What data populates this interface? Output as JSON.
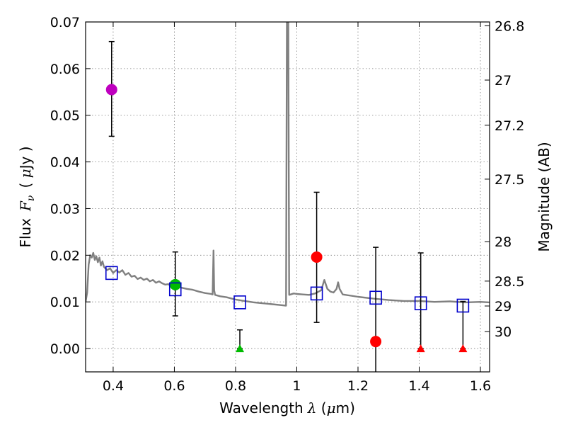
{
  "chart_data": {
    "type": "scatter",
    "xlabel": {
      "prefix": "Wavelength",
      "symbol": "λ",
      "unit_open": " (",
      "unit_mu": "μ",
      "unit_rest": "m)"
    },
    "ylabel": {
      "prefix": "Flux",
      "symbol": "F",
      "subscript": "ν",
      "unit_open": "( ",
      "unit_mu": "μ",
      "unit_rest": "Jy )"
    },
    "y2label": "Magnitude (AB)",
    "xlim": [
      0.31,
      1.63
    ],
    "ylim": [
      -0.005,
      0.07
    ],
    "grid": true,
    "x_ticks": [
      0.4,
      0.6,
      0.8,
      1.0,
      1.2,
      1.4,
      1.6
    ],
    "x_tick_labels": [
      "0.4",
      "0.6",
      "0.8",
      "1",
      "1.2",
      "1.4",
      "1.6"
    ],
    "y_ticks": [
      0.0,
      0.01,
      0.02,
      0.03,
      0.04,
      0.05,
      0.06,
      0.07
    ],
    "y_tick_labels": [
      "0.00",
      "0.01",
      "0.02",
      "0.03",
      "0.04",
      "0.05",
      "0.06",
      "0.07"
    ],
    "mag_ticks": [
      {
        "label": "26.8",
        "mag": 26.8
      },
      {
        "label": "27",
        "mag": 27.0
      },
      {
        "label": "27.2",
        "mag": 27.2
      },
      {
        "label": "27.5",
        "mag": 27.5
      },
      {
        "label": "28",
        "mag": 28.0
      },
      {
        "label": "28.5",
        "mag": 28.5
      },
      {
        "label": "29",
        "mag": 29.0
      },
      {
        "label": "30",
        "mag": 30.0
      }
    ],
    "colors": {
      "sed": "#808080",
      "model": "#0000cc",
      "purple": "#bf00bf",
      "green": "#00bb00",
      "red": "#ff0000",
      "error": "#000000",
      "grid": "#7f7f7f"
    },
    "sed_model": [
      [
        0.31,
        0.01
      ],
      [
        0.315,
        0.012
      ],
      [
        0.32,
        0.018
      ],
      [
        0.325,
        0.02
      ],
      [
        0.33,
        0.0195
      ],
      [
        0.335,
        0.0205
      ],
      [
        0.34,
        0.019
      ],
      [
        0.345,
        0.0198
      ],
      [
        0.35,
        0.0185
      ],
      [
        0.355,
        0.0195
      ],
      [
        0.36,
        0.0178
      ],
      [
        0.365,
        0.0187
      ],
      [
        0.37,
        0.0175
      ],
      [
        0.38,
        0.0168
      ],
      [
        0.39,
        0.0172
      ],
      [
        0.4,
        0.0162
      ],
      [
        0.41,
        0.0168
      ],
      [
        0.42,
        0.0163
      ],
      [
        0.43,
        0.0168
      ],
      [
        0.44,
        0.0158
      ],
      [
        0.45,
        0.0162
      ],
      [
        0.46,
        0.0154
      ],
      [
        0.47,
        0.0156
      ],
      [
        0.48,
        0.0149
      ],
      [
        0.49,
        0.0152
      ],
      [
        0.5,
        0.0147
      ],
      [
        0.51,
        0.015
      ],
      [
        0.52,
        0.0144
      ],
      [
        0.53,
        0.0147
      ],
      [
        0.54,
        0.0141
      ],
      [
        0.55,
        0.0144
      ],
      [
        0.56,
        0.014
      ],
      [
        0.57,
        0.0137
      ],
      [
        0.58,
        0.0138
      ],
      [
        0.59,
        0.0134
      ],
      [
        0.6,
        0.0136
      ],
      [
        0.62,
        0.0131
      ],
      [
        0.64,
        0.0128
      ],
      [
        0.66,
        0.0126
      ],
      [
        0.68,
        0.0122
      ],
      [
        0.7,
        0.0119
      ],
      [
        0.72,
        0.0117
      ],
      [
        0.725,
        0.0116
      ],
      [
        0.728,
        0.021
      ],
      [
        0.73,
        0.0125
      ],
      [
        0.733,
        0.0115
      ],
      [
        0.75,
        0.0112
      ],
      [
        0.77,
        0.011
      ],
      [
        0.8,
        0.0105
      ],
      [
        0.83,
        0.0102
      ],
      [
        0.86,
        0.0099
      ],
      [
        0.89,
        0.0097
      ],
      [
        0.92,
        0.0095
      ],
      [
        0.95,
        0.0093
      ],
      [
        0.965,
        0.0092
      ],
      [
        0.968,
        0.075
      ],
      [
        0.972,
        0.075
      ],
      [
        0.975,
        0.0115
      ],
      [
        0.99,
        0.0118
      ],
      [
        1.0,
        0.0117
      ],
      [
        1.02,
        0.0116
      ],
      [
        1.04,
        0.0115
      ],
      [
        1.06,
        0.0118
      ],
      [
        1.08,
        0.0125
      ],
      [
        1.09,
        0.0147
      ],
      [
        1.1,
        0.0128
      ],
      [
        1.11,
        0.0122
      ],
      [
        1.12,
        0.012
      ],
      [
        1.13,
        0.0128
      ],
      [
        1.135,
        0.0142
      ],
      [
        1.14,
        0.0128
      ],
      [
        1.15,
        0.0116
      ],
      [
        1.17,
        0.0114
      ],
      [
        1.2,
        0.0111
      ],
      [
        1.25,
        0.0107
      ],
      [
        1.3,
        0.0104
      ],
      [
        1.35,
        0.0102
      ],
      [
        1.4,
        0.0102
      ],
      [
        1.45,
        0.01
      ],
      [
        1.5,
        0.0101
      ],
      [
        1.55,
        0.0099
      ],
      [
        1.6,
        0.01
      ],
      [
        1.63,
        0.0099
      ]
    ],
    "model_points": [
      {
        "x": 0.395,
        "y": 0.0162
      },
      {
        "x": 0.603,
        "y": 0.0127
      },
      {
        "x": 0.814,
        "y": 0.0099
      },
      {
        "x": 1.065,
        "y": 0.0118
      },
      {
        "x": 1.258,
        "y": 0.0109
      },
      {
        "x": 1.405,
        "y": 0.0097
      },
      {
        "x": 1.543,
        "y": 0.0092
      }
    ],
    "detections": [
      {
        "x": 0.395,
        "y": 0.0555,
        "err_low": 0.0455,
        "err_high": 0.0658,
        "color": "purple"
      },
      {
        "x": 0.603,
        "y": 0.0137,
        "err_low": 0.007,
        "err_high": 0.0207,
        "color": "green"
      },
      {
        "x": 1.065,
        "y": 0.0196,
        "err_low": 0.0056,
        "err_high": 0.0335,
        "color": "red"
      },
      {
        "x": 1.258,
        "y": 0.0015,
        "err_low": -0.006,
        "err_high": 0.0217,
        "color": "red"
      }
    ],
    "upper_limits": [
      {
        "x": 0.814,
        "y": 0.0,
        "err_high": 0.004,
        "color": "green"
      },
      {
        "x": 1.405,
        "y": 0.0,
        "err_high": 0.0205,
        "color": "red"
      },
      {
        "x": 1.543,
        "y": 0.0,
        "err_high": 0.0101,
        "color": "red"
      }
    ]
  }
}
